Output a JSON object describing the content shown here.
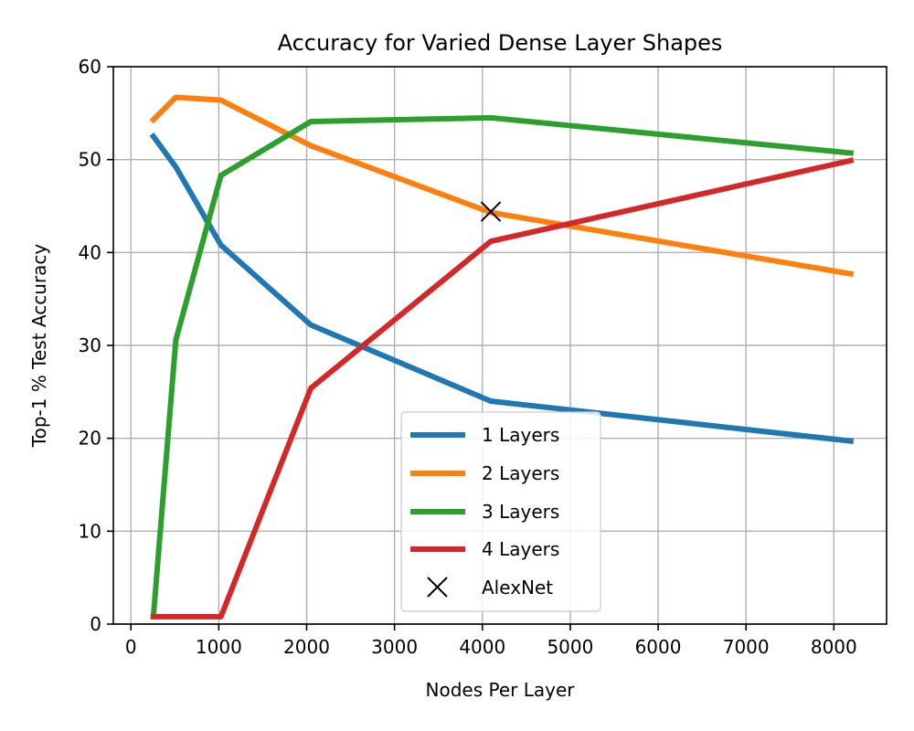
{
  "chart_data": {
    "type": "line",
    "title": "Accuracy for Varied Dense Layer Shapes",
    "xlabel": "Nodes Per Layer",
    "ylabel": "Top-1 % Test Accuracy",
    "xlim": [
      -200,
      8600
    ],
    "ylim": [
      0,
      60
    ],
    "xticks": [
      0,
      1000,
      2000,
      3000,
      4000,
      5000,
      6000,
      7000,
      8000
    ],
    "yticks": [
      0,
      10,
      20,
      30,
      40,
      50,
      60
    ],
    "grid": true,
    "legend_position": "lower-center",
    "series": [
      {
        "name": "1 Layers",
        "color": "#1f77b4",
        "x": [
          256,
          512,
          1024,
          2048,
          4096,
          8192
        ],
        "values": [
          52.5,
          49.2,
          40.8,
          32.2,
          24.0,
          19.7
        ]
      },
      {
        "name": "2 Layers",
        "color": "#ff7f0e",
        "x": [
          256,
          512,
          1024,
          2048,
          4096,
          8192
        ],
        "values": [
          54.3,
          56.7,
          56.4,
          51.5,
          44.3,
          37.7
        ]
      },
      {
        "name": "3 Layers",
        "color": "#2ca02c",
        "x": [
          256,
          512,
          1024,
          2048,
          4096,
          8192
        ],
        "values": [
          0.8,
          30.6,
          48.3,
          54.1,
          54.5,
          50.7
        ]
      },
      {
        "name": "4 Layers",
        "color": "#d62728",
        "x": [
          256,
          512,
          1024,
          2048,
          4096,
          8192
        ],
        "values": [
          0.8,
          0.8,
          0.8,
          25.4,
          41.2,
          49.9
        ]
      }
    ],
    "markers": [
      {
        "name": "AlexNet",
        "symbol": "x",
        "color": "#000000",
        "x": 4096,
        "y": 44.4
      }
    ]
  }
}
